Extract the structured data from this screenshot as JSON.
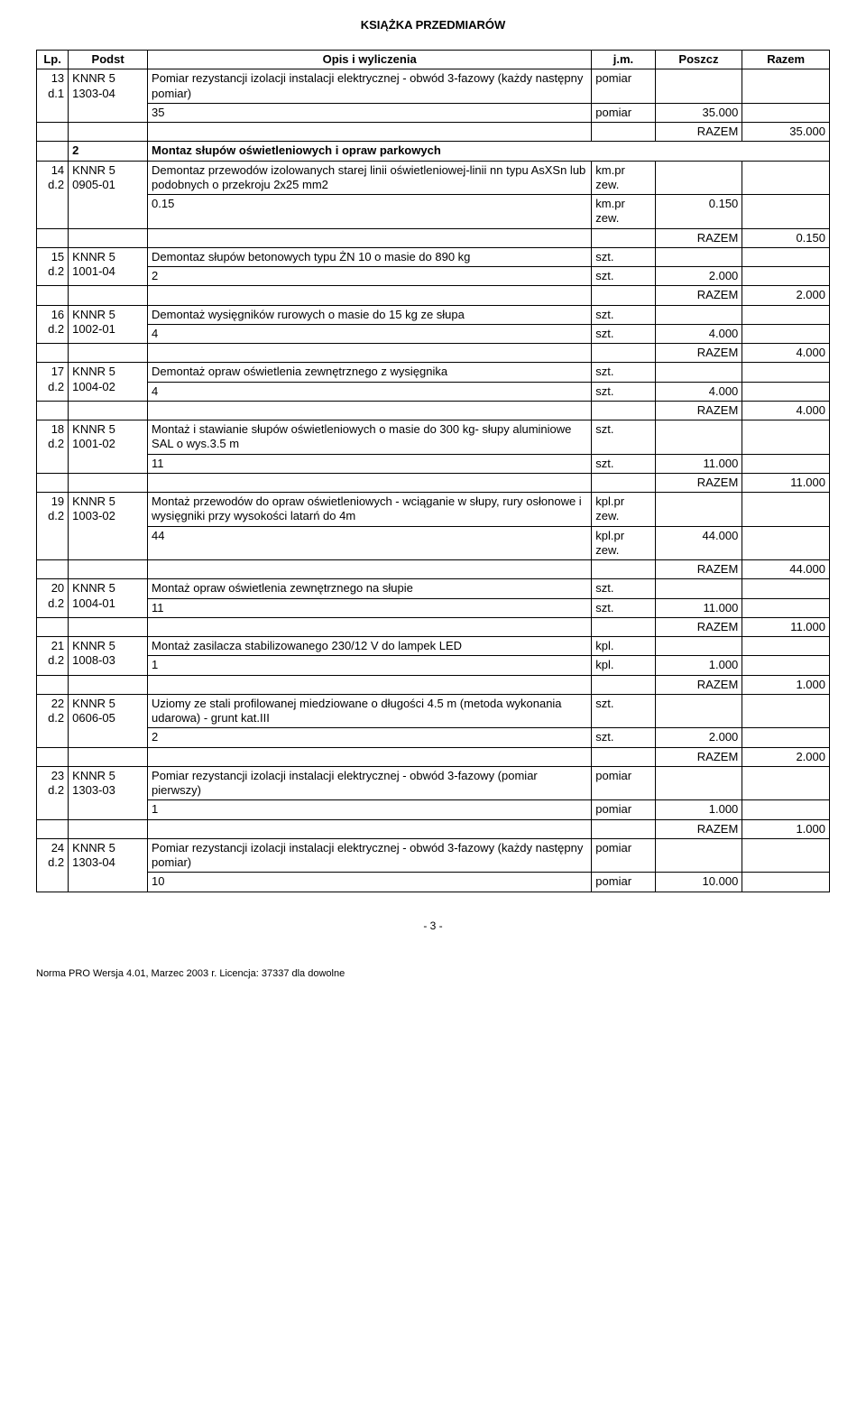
{
  "doc_title": "KSIĄŻKA PRZEDMIARÓW",
  "headers": {
    "lp": "Lp.",
    "podst": "Podst",
    "opis": "Opis i wyliczenia",
    "jm": "j.m.",
    "poszcz": "Poszcz",
    "razem": "Razem"
  },
  "rows": [
    {
      "type": "entry",
      "lp": "13",
      "podst": "KNNR 5\n1303-04",
      "sub": "d.1",
      "opis": "Pomiar rezystancji izolacji instalacji elektrycznej - obwód 3-fazowy (każdy następny pomiar)",
      "jm": "pomiar",
      "calc": "35",
      "calc_jm": "pomiar",
      "poszcz": "35.000",
      "razem_lbl": "RAZEM",
      "razem": "35.000"
    },
    {
      "type": "section",
      "num": "2",
      "title": "Montaz słupów oświetleniowych i opraw parkowych"
    },
    {
      "type": "entry",
      "lp": "14",
      "podst": "KNNR 5\n0905-01",
      "sub": "d.2",
      "opis": "Demontaz  przewodów izolowanych starej linii oświetleniowej-linii nn typu AsXSn lub podobnych o przekroju 2x25 mm2",
      "jm": "km.pr zew.",
      "calc": "0.15",
      "calc_jm": "km.pr zew.",
      "poszcz": "0.150",
      "razem_lbl": "RAZEM",
      "razem": "0.150"
    },
    {
      "type": "entry",
      "lp": "15",
      "podst": "KNNR 5\n1001-04",
      "sub": "d.2",
      "opis": "Demontaz słupów betonowych typu ŻN 10 o masie do 890 kg",
      "jm": "szt.",
      "calc": "2",
      "calc_jm": "szt.",
      "poszcz": "2.000",
      "razem_lbl": "RAZEM",
      "razem": "2.000"
    },
    {
      "type": "entry",
      "lp": "16",
      "podst": "KNNR 5\n1002-01",
      "sub": "d.2",
      "opis": "Demontaż wysięgników rurowych o masie do 15 kg ze słupa",
      "jm": "szt.",
      "calc": "4",
      "calc_jm": "szt.",
      "poszcz": "4.000",
      "razem_lbl": "RAZEM",
      "razem": "4.000"
    },
    {
      "type": "entry",
      "lp": "17",
      "podst": "KNNR 5\n1004-02",
      "sub": "d.2",
      "opis": "Demontaż opraw oświetlenia zewnętrznego z wysięgnika",
      "jm": "szt.",
      "calc": "4",
      "calc_jm": "szt.",
      "poszcz": "4.000",
      "razem_lbl": "RAZEM",
      "razem": "4.000"
    },
    {
      "type": "entry",
      "lp": "18",
      "podst": "KNNR 5\n1001-02",
      "sub": "d.2",
      "opis": "Montaż i stawianie słupów oświetleniowych o masie do 300 kg- słupy aluminiowe SAL o wys.3.5 m",
      "jm": "szt.",
      "calc": "11",
      "calc_jm": "szt.",
      "poszcz": "11.000",
      "razem_lbl": "RAZEM",
      "razem": "11.000"
    },
    {
      "type": "entry",
      "lp": "19",
      "podst": "KNNR 5\n1003-02",
      "sub": "d.2",
      "opis": "Montaż przewodów do opraw oświetleniowych - wciąganie w słupy, rury osłonowe i wysięgniki przy wysokości latarń do 4m",
      "jm": "kpl.pr zew.",
      "calc": "44",
      "calc_jm": "kpl.pr zew.",
      "poszcz": "44.000",
      "razem_lbl": "RAZEM",
      "razem": "44.000"
    },
    {
      "type": "entry",
      "lp": "20",
      "podst": "KNNR 5\n1004-01",
      "sub": "d.2",
      "opis": "Montaż opraw oświetlenia zewnętrznego na słupie",
      "jm": "szt.",
      "calc": "11",
      "calc_jm": "szt.",
      "poszcz": "11.000",
      "razem_lbl": "RAZEM",
      "razem": "11.000"
    },
    {
      "type": "entry",
      "lp": "21",
      "podst": "KNNR 5\n1008-03",
      "sub": "d.2",
      "opis": "Montaż zasilacza stabilizowanego 230/12 V do lampek LED",
      "jm": "kpl.",
      "calc": "1",
      "calc_jm": "kpl.",
      "poszcz": "1.000",
      "razem_lbl": "RAZEM",
      "razem": "1.000"
    },
    {
      "type": "entry",
      "lp": "22",
      "podst": "KNNR 5\n0606-05",
      "sub": "d.2",
      "opis": "Uziomy ze stali profilowanej miedziowane o długości 4.5 m (metoda wykonania udarowa) - grunt kat.III",
      "jm": "szt.",
      "calc": " 2",
      "calc_jm": "szt.",
      "poszcz": "2.000",
      "razem_lbl": "RAZEM",
      "razem": "2.000"
    },
    {
      "type": "entry",
      "lp": "23",
      "podst": "KNNR 5\n1303-03",
      "sub": "d.2",
      "opis": "Pomiar rezystancji izolacji instalacji elektrycznej - obwód 3-fazowy (pomiar pierwszy)",
      "jm": "pomiar",
      "calc": "1",
      "calc_jm": "pomiar",
      "poszcz": "1.000",
      "razem_lbl": "RAZEM",
      "razem": "1.000"
    },
    {
      "type": "entry_open",
      "lp": "24",
      "podst": "KNNR 5\n1303-04",
      "sub": "d.2",
      "opis": "Pomiar rezystancji izolacji instalacji elektrycznej - obwód 3-fazowy (każdy następny pomiar)",
      "jm": "pomiar",
      "calc": "10",
      "calc_jm": "pomiar",
      "poszcz": "10.000"
    }
  ],
  "page_num": "- 3 -",
  "footer": "Norma PRO Wersja 4.01, Marzec 2003 r. Licencja: 37337 dla dowolne"
}
